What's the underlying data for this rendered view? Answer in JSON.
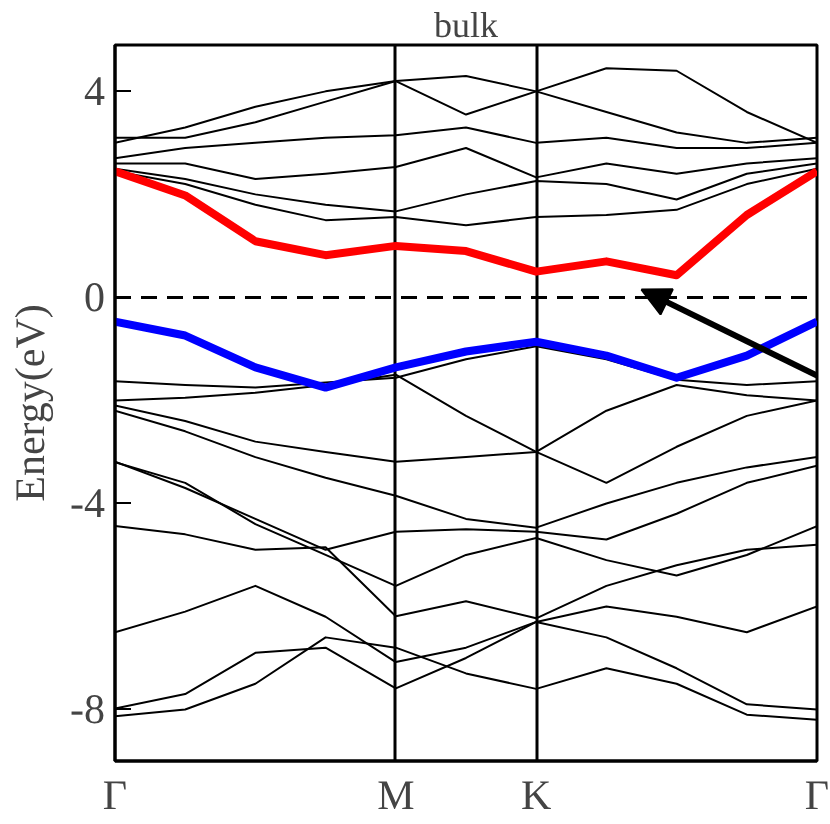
{
  "chart_data": {
    "type": "line",
    "title": "bulk",
    "ylabel": "Energy(eV)",
    "categories": [
      "Γ",
      null,
      null,
      null,
      "M",
      null,
      "K",
      null,
      null,
      null,
      "Γ"
    ],
    "ylim": [
      -9,
      4.9
    ],
    "yticks": [
      -8,
      -4,
      0,
      4
    ],
    "grid": "x",
    "marker": "none",
    "line_style": "solid",
    "ref_lines": [
      {
        "axis": "y",
        "value": 0,
        "line_style": "dashed",
        "color": "#000000"
      }
    ],
    "series": [
      {
        "color": "#000000",
        "values": [
          3.0,
          3.3,
          3.7,
          4.0,
          4.2,
          4.3,
          4.0,
          4.45,
          4.4,
          3.6,
          3.0
        ]
      },
      {
        "color": "#000000",
        "values": [
          3.1,
          3.1,
          3.4,
          3.8,
          4.2,
          3.55,
          4.0,
          3.6,
          3.2,
          3.0,
          3.1
        ]
      },
      {
        "color": "#000000",
        "values": [
          2.7,
          2.9,
          3.0,
          3.1,
          3.15,
          3.3,
          3.0,
          3.1,
          2.9,
          2.9,
          3.0
        ]
      },
      {
        "color": "#000000",
        "values": [
          2.6,
          2.6,
          2.3,
          2.4,
          2.53,
          2.9,
          2.33,
          2.6,
          2.4,
          2.6,
          2.7
        ]
      },
      {
        "color": "#000000",
        "values": [
          2.5,
          2.3,
          2.0,
          1.8,
          1.67,
          2.0,
          2.26,
          2.2,
          1.9,
          2.4,
          2.6
        ]
      },
      {
        "color": "#000000",
        "values": [
          2.45,
          2.2,
          1.8,
          1.5,
          1.56,
          1.4,
          1.56,
          1.6,
          1.7,
          2.2,
          2.5
        ]
      },
      {
        "color": "#000000",
        "values": [
          -1.63,
          -1.7,
          -1.75,
          -1.65,
          -1.56,
          -1.2,
          -0.95,
          -1.2,
          -1.6,
          -1.7,
          -1.63
        ]
      },
      {
        "color": "#000000",
        "values": [
          -2.0,
          -1.95,
          -1.85,
          -1.7,
          -1.5,
          -2.3,
          -3.0,
          -2.2,
          -1.7,
          -1.9,
          -2.0
        ]
      },
      {
        "color": "#000000",
        "values": [
          -2.1,
          -2.4,
          -2.8,
          -3.0,
          -3.19,
          -3.1,
          -3.0,
          -3.6,
          -2.9,
          -2.3,
          -2.0
        ]
      },
      {
        "color": "#000000",
        "values": [
          -2.2,
          -2.6,
          -3.1,
          -3.5,
          -3.85,
          -4.3,
          -4.47,
          -4.0,
          -3.6,
          -3.3,
          -3.1
        ]
      },
      {
        "color": "#000000",
        "values": [
          -3.19,
          -3.7,
          -4.3,
          -4.9,
          -4.55,
          -4.5,
          -4.55,
          -4.7,
          -4.2,
          -3.6,
          -3.27
        ]
      },
      {
        "color": "#000000",
        "values": [
          -3.2,
          -3.6,
          -4.4,
          -5.0,
          -5.6,
          -5.0,
          -4.67,
          -5.1,
          -5.4,
          -5.0,
          -4.44
        ]
      },
      {
        "color": "#000000",
        "values": [
          -4.44,
          -4.6,
          -4.9,
          -4.85,
          -6.19,
          -5.9,
          -6.23,
          -5.6,
          -5.2,
          -4.9,
          -4.8
        ]
      },
      {
        "color": "#000000",
        "values": [
          -6.5,
          -6.1,
          -5.6,
          -6.2,
          -7.08,
          -6.8,
          -6.3,
          -6.0,
          -6.2,
          -6.5,
          -6.0
        ]
      },
      {
        "color": "#000000",
        "values": [
          -7.98,
          -7.7,
          -6.9,
          -6.8,
          -7.59,
          -7.0,
          -6.3,
          -6.6,
          -7.2,
          -7.9,
          -8.0
        ]
      },
      {
        "color": "#000000",
        "values": [
          -8.13,
          -8.0,
          -7.5,
          -6.6,
          -6.8,
          -7.3,
          -7.6,
          -7.2,
          -7.5,
          -8.1,
          -8.2
        ]
      },
      {
        "color": "#ff0000",
        "values": [
          2.45,
          1.98,
          1.09,
          0.82,
          1.0,
          0.9,
          0.5,
          0.7,
          0.43,
          1.6,
          2.45
        ]
      },
      {
        "color": "#0000ff",
        "values": [
          -0.47,
          -0.74,
          -1.36,
          -1.75,
          -1.36,
          -1.05,
          -0.86,
          -1.13,
          -1.56,
          -1.13,
          -0.47
        ]
      }
    ]
  }
}
